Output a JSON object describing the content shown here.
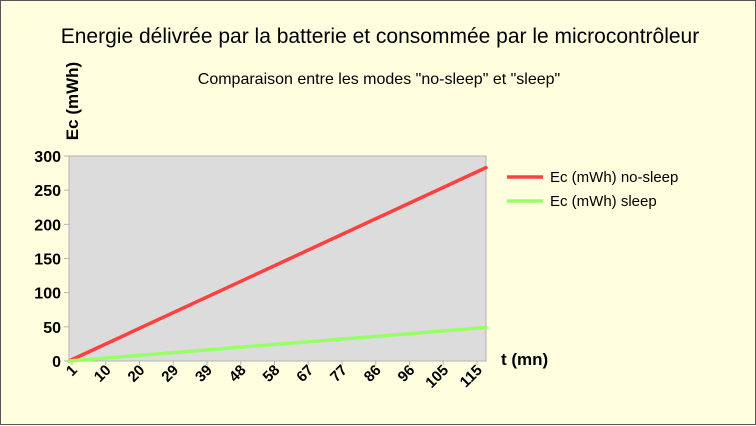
{
  "chart_data": {
    "type": "line",
    "title": "Energie délivrée par la batterie et consommée par le microcontrôleur",
    "subtitle": "Comparaison entre les modes \"no-sleep\" et \"sleep\"",
    "ylabel": "Ec (mWh)",
    "xlabel": "t (mn)",
    "ylim": [
      0,
      300
    ],
    "yticks": [
      0,
      50,
      100,
      150,
      200,
      250,
      300
    ],
    "xlim": [
      1,
      120
    ],
    "x_tick_labels": [
      1,
      10,
      20,
      29,
      39,
      48,
      58,
      67,
      77,
      86,
      96,
      105,
      115
    ],
    "grid": false,
    "legend_position": "right",
    "series": [
      {
        "name": "Ec (mWh) no-sleep",
        "color": "#ff4040",
        "x": [
          1,
          120
        ],
        "y": [
          0,
          283
        ]
      },
      {
        "name": "Ec (mWh) sleep",
        "color": "#99ff66",
        "x": [
          1,
          120
        ],
        "y": [
          0,
          49
        ]
      }
    ],
    "plot_background": "#dcdcdc"
  }
}
